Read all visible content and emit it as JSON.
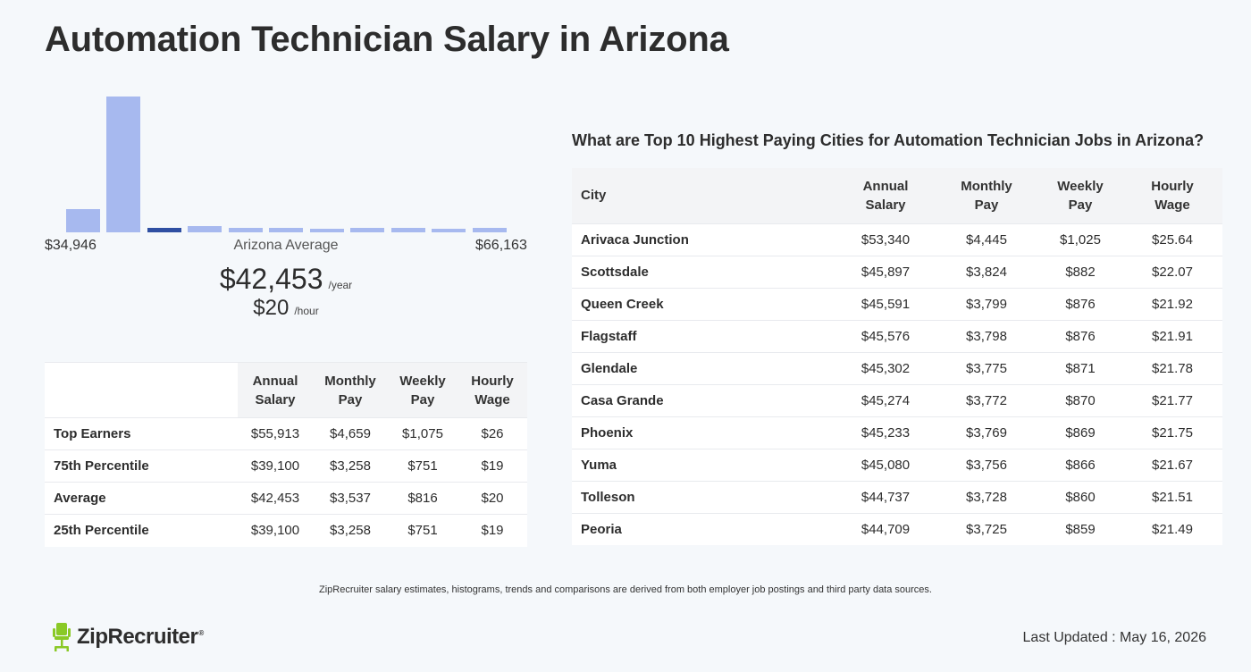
{
  "page": {
    "title": "Automation Technician Salary in Arizona",
    "disclaimer": "ZipRecruiter salary estimates, histograms, trends and comparisons are derived from both employer job postings and third party data sources.",
    "last_updated": "Last Updated : May 16, 2026",
    "logo_text": "ZipRecruiter",
    "logo_reg": "®"
  },
  "histogram": {
    "min_label": "$34,946",
    "max_label": "$66,163",
    "avg_label": "Arizona Average",
    "avg_year": "$42,453",
    "year_unit": "/year",
    "avg_hour": "$20",
    "hour_unit": "/hour",
    "bar_fractions": [
      0.17,
      1.0,
      0.03,
      0.045,
      0.03,
      0.03,
      0.025,
      0.03,
      0.03,
      0.025,
      0.035
    ],
    "highlight_index": 2,
    "bar_color": "#a7b9ef",
    "highlight_color": "#2f4fa2"
  },
  "percentile_table": {
    "headers": [
      [
        "Annual",
        "Salary"
      ],
      [
        "Monthly",
        "Pay"
      ],
      [
        "Weekly",
        "Pay"
      ],
      [
        "Hourly",
        "Wage"
      ]
    ],
    "rows": [
      {
        "label": "Top Earners",
        "annual": "$55,913",
        "monthly": "$4,659",
        "weekly": "$1,075",
        "hourly": "$26"
      },
      {
        "label": "75th Percentile",
        "annual": "$39,100",
        "monthly": "$3,258",
        "weekly": "$751",
        "hourly": "$19"
      },
      {
        "label": "Average",
        "annual": "$42,453",
        "monthly": "$3,537",
        "weekly": "$816",
        "hourly": "$20"
      },
      {
        "label": "25th Percentile",
        "annual": "$39,100",
        "monthly": "$3,258",
        "weekly": "$751",
        "hourly": "$19"
      }
    ]
  },
  "cities_table": {
    "heading": "What are Top 10 Highest Paying Cities for Automation Technician Jobs in Arizona?",
    "city_header": "City",
    "headers": [
      [
        "Annual",
        "Salary"
      ],
      [
        "Monthly",
        "Pay"
      ],
      [
        "Weekly",
        "Pay"
      ],
      [
        "Hourly",
        "Wage"
      ]
    ],
    "rows": [
      {
        "city": "Arivaca Junction",
        "annual": "$53,340",
        "monthly": "$4,445",
        "weekly": "$1,025",
        "hourly": "$25.64"
      },
      {
        "city": "Scottsdale",
        "annual": "$45,897",
        "monthly": "$3,824",
        "weekly": "$882",
        "hourly": "$22.07"
      },
      {
        "city": "Queen Creek",
        "annual": "$45,591",
        "monthly": "$3,799",
        "weekly": "$876",
        "hourly": "$21.92"
      },
      {
        "city": "Flagstaff",
        "annual": "$45,576",
        "monthly": "$3,798",
        "weekly": "$876",
        "hourly": "$21.91"
      },
      {
        "city": "Glendale",
        "annual": "$45,302",
        "monthly": "$3,775",
        "weekly": "$871",
        "hourly": "$21.78"
      },
      {
        "city": "Casa Grande",
        "annual": "$45,274",
        "monthly": "$3,772",
        "weekly": "$870",
        "hourly": "$21.77"
      },
      {
        "city": "Phoenix",
        "annual": "$45,233",
        "monthly": "$3,769",
        "weekly": "$869",
        "hourly": "$21.75"
      },
      {
        "city": "Yuma",
        "annual": "$45,080",
        "monthly": "$3,756",
        "weekly": "$866",
        "hourly": "$21.67"
      },
      {
        "city": "Tolleson",
        "annual": "$44,737",
        "monthly": "$3,728",
        "weekly": "$860",
        "hourly": "$21.51"
      },
      {
        "city": "Peoria",
        "annual": "$44,709",
        "monthly": "$3,725",
        "weekly": "$859",
        "hourly": "$21.49"
      }
    ]
  },
  "icons": {
    "logo": "ziprecruiter-chair-icon",
    "logo_color": "#8ac926"
  }
}
